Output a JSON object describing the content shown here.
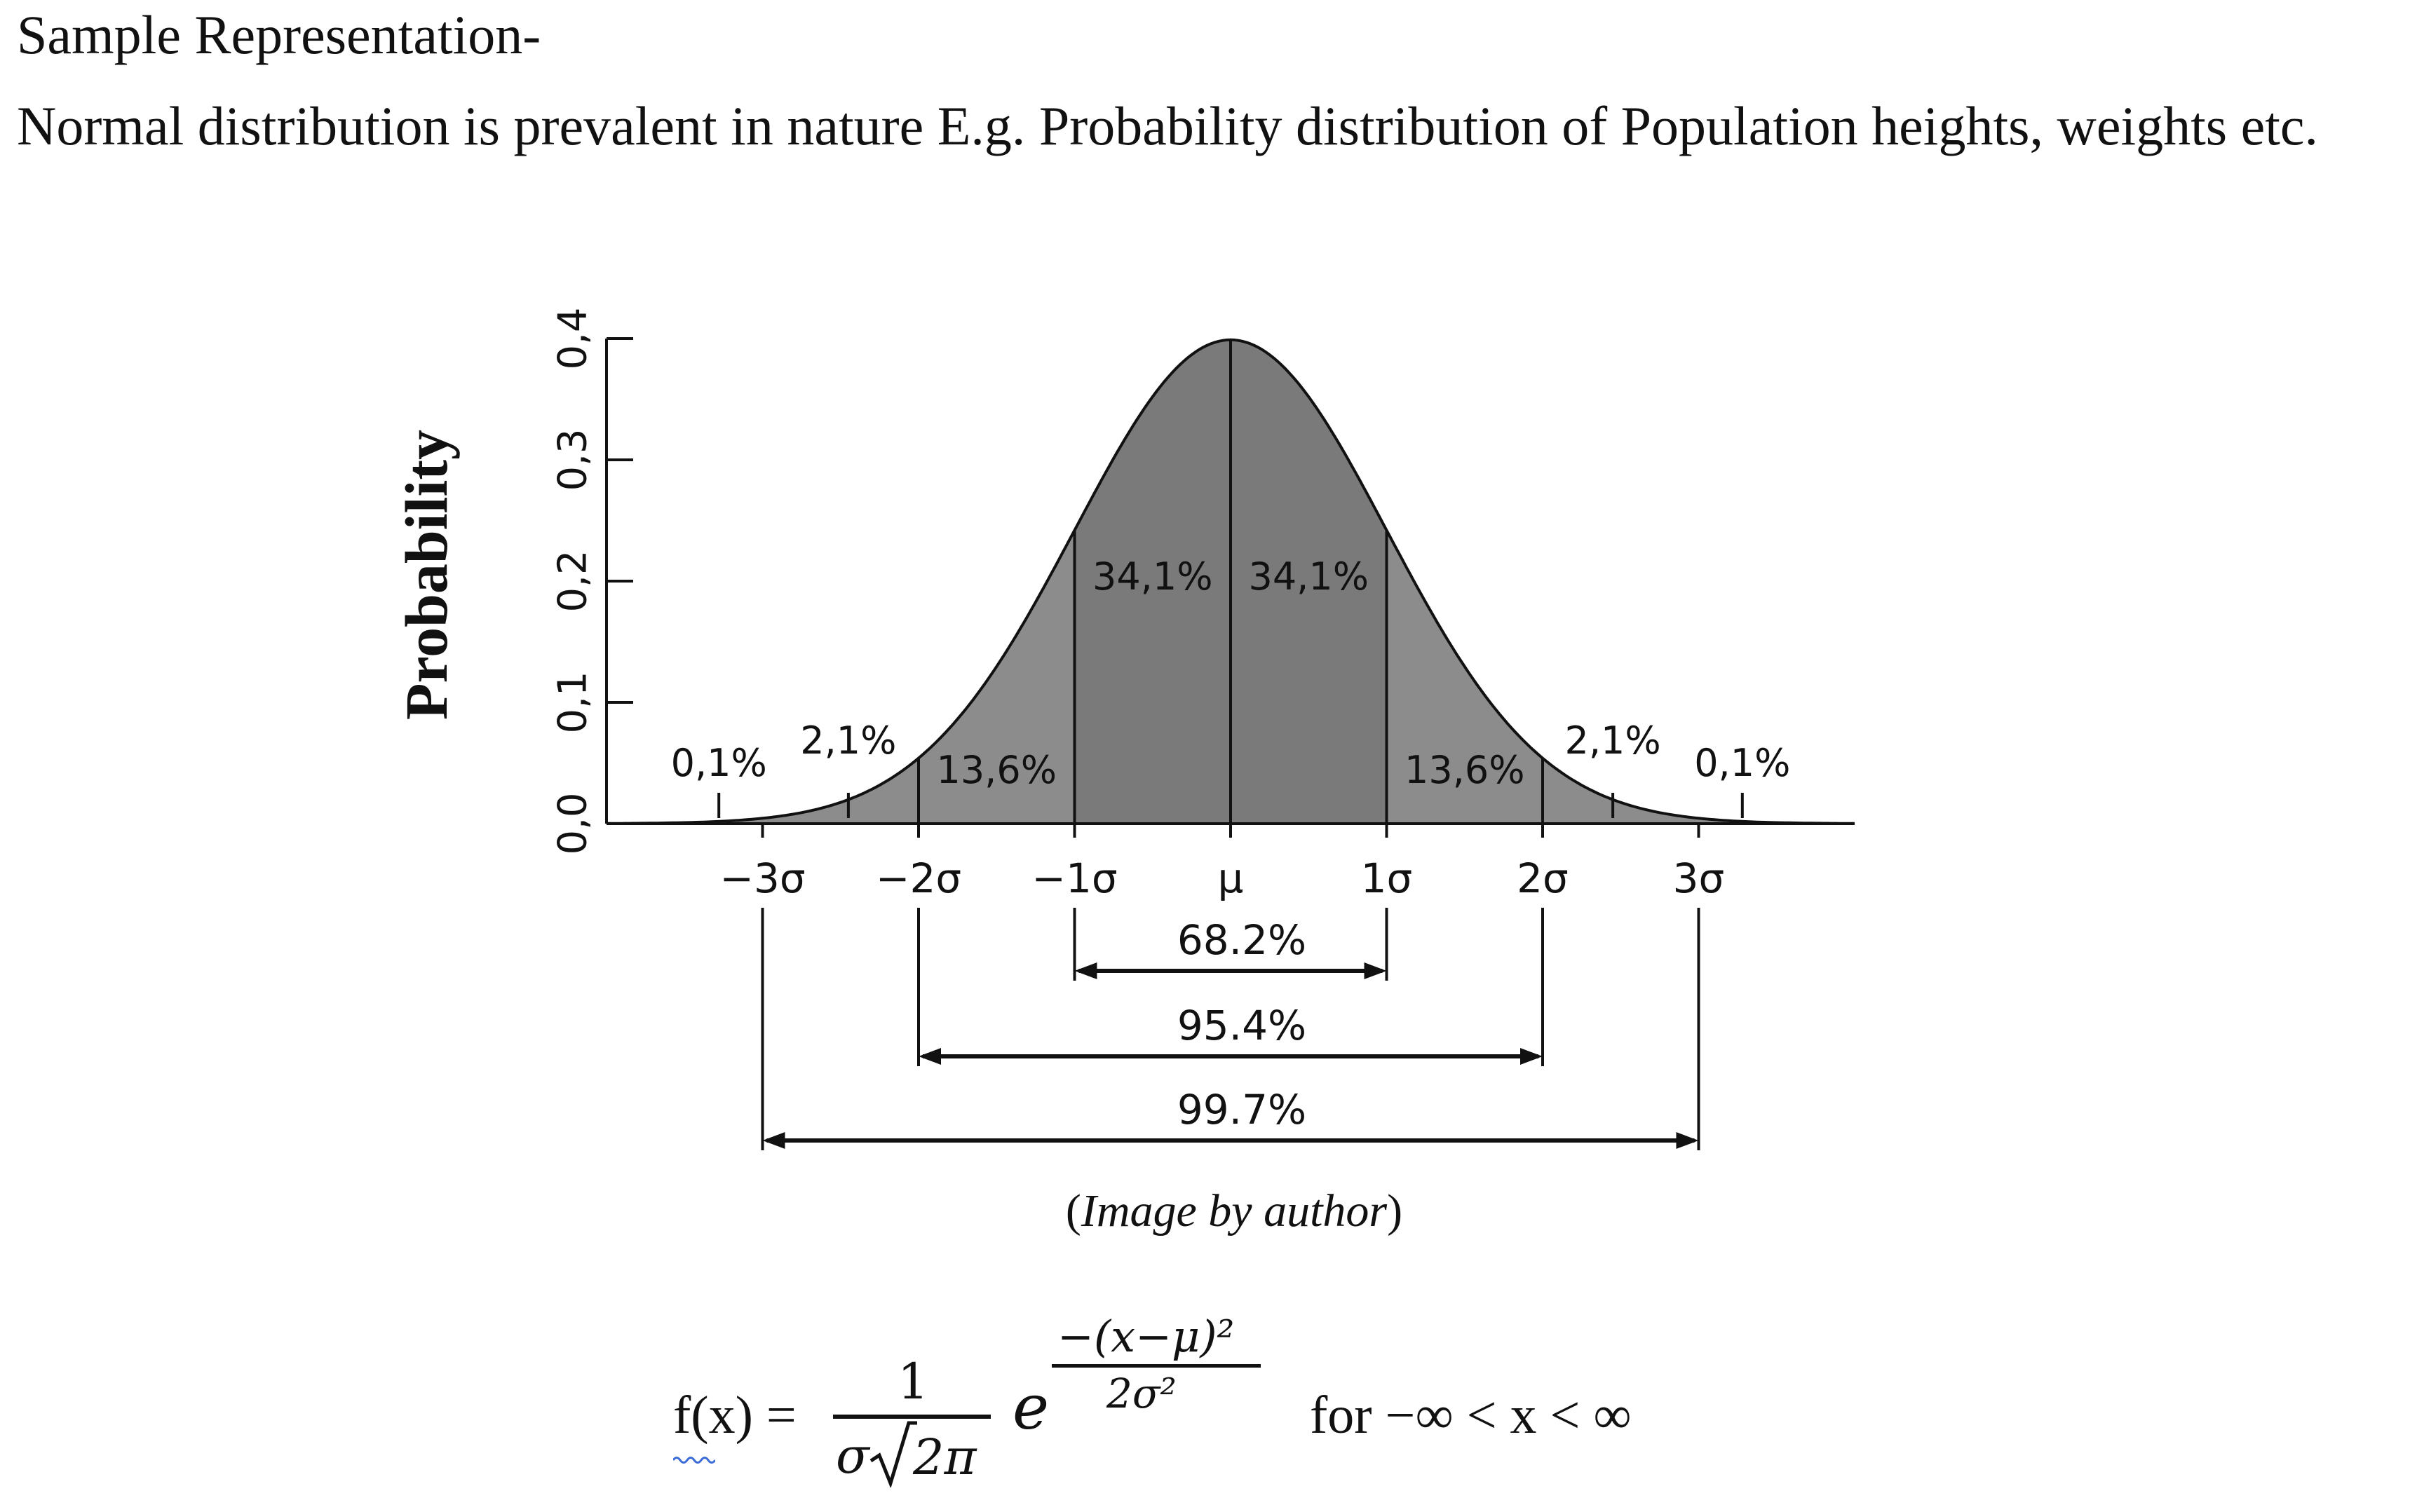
{
  "heading": "Sample Representation-",
  "intro": "Normal distribution is prevalent in nature E.g. Probability distribution of Population heights, weights etc.",
  "caption": {
    "open": "(",
    "text": "Image by author",
    "close": ")"
  },
  "formula": {
    "lhs": "f(x) =",
    "numerator": "1",
    "sigma": "σ",
    "radicand": "2π",
    "base": "e",
    "exp_numerator": "−(x−μ)²",
    "exp_denominator": "2σ²",
    "domain": "for −∞ < x <  ∞"
  },
  "chart_data": {
    "type": "area",
    "ylabel": "Probability",
    "ylim": [
      0,
      0.4
    ],
    "xlim": [
      -4,
      4
    ],
    "ytick_labels": [
      "0,0",
      "0,1",
      "0,2",
      "0,3",
      "0,4"
    ],
    "yticks": [
      0,
      0.1,
      0.2,
      0.3,
      0.4
    ],
    "xtick_labels": [
      "−3σ",
      "−2σ",
      "−1σ",
      "μ",
      "1σ",
      "2σ",
      "3σ"
    ],
    "xticks": [
      -3,
      -2,
      -1,
      0,
      1,
      2,
      3
    ],
    "curve": "normal pdf, mean 0, sd 1",
    "regions": [
      {
        "from": -4,
        "to": -3,
        "label": "0,1%"
      },
      {
        "from": -3,
        "to": -2,
        "label": "2,1%"
      },
      {
        "from": -2,
        "to": -1,
        "label": "13,6%"
      },
      {
        "from": -1,
        "to": 0,
        "label": "34,1%"
      },
      {
        "from": 0,
        "to": 1,
        "label": "34,1%"
      },
      {
        "from": 1,
        "to": 2,
        "label": "13,6%"
      },
      {
        "from": 2,
        "to": 3,
        "label": "2,1%"
      },
      {
        "from": 3,
        "to": 4,
        "label": "0,1%"
      }
    ],
    "ranges": [
      {
        "from": -1,
        "to": 1,
        "label": "68.2%"
      },
      {
        "from": -2,
        "to": 2,
        "label": "95.4%"
      },
      {
        "from": -3,
        "to": 3,
        "label": "99.7%"
      }
    ],
    "colors": {
      "inner": "#7a7a7a",
      "outer": "#8c8c8c",
      "line": "#111111"
    }
  }
}
